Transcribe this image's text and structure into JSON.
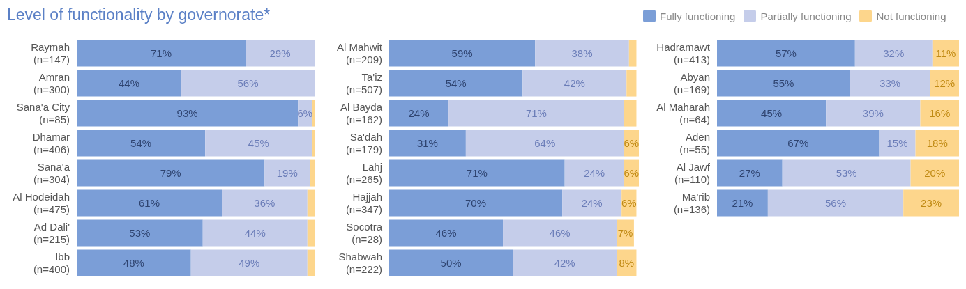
{
  "chart_data": [
    {
      "type": "bar",
      "orientation": "horizontal",
      "stacked": true,
      "title": "Level of functionality by governorate*",
      "legend": false,
      "categories": [
        "Raymah\n(n=147)",
        "Amran\n(n=300)",
        "Sana'a City\n(n=85)",
        "Dhamar\n(n=406)",
        "Sana'a\n(n=304)",
        "Al Hodeidah\n(n=475)",
        "Ad Dali'\n(n=215)",
        "Ibb\n(n=400)"
      ],
      "series": [
        {
          "color": "#7b9ed7",
          "values": [
            71,
            44,
            93,
            54,
            79,
            61,
            53,
            48
          ],
          "value_labels": [
            "71%",
            "44%",
            "93%",
            "54%",
            "79%",
            "61%",
            "53%",
            "48%"
          ]
        },
        {
          "color": "#c5cdea",
          "values": [
            29,
            56,
            6,
            45,
            19,
            36,
            44,
            49
          ],
          "value_labels": [
            "29%",
            "56%",
            "6%",
            "45%",
            "19%",
            "36%",
            "44%",
            "49%"
          ]
        },
        {
          "color": "#fdd68c",
          "values": [
            0,
            0,
            1,
            1,
            2,
            3,
            3,
            3
          ],
          "value_labels": [
            null,
            null,
            null,
            null,
            null,
            null,
            null,
            null
          ]
        }
      ]
    },
    {
      "type": "bar",
      "orientation": "horizontal",
      "stacked": true,
      "legend": "top right",
      "categories": [
        "Al Mahwit\n(n=209)",
        "Ta'iz\n(n=507)",
        "Al Bayda\n(n=162)",
        "Sa'dah\n(n=179)",
        "Lahj\n(n=265)",
        "Hajjah\n(n=347)",
        "Socotra\n(n=28)",
        "Shabwah\n(n=222)"
      ],
      "series": [
        {
          "name": "Fully functioning",
          "color": "#7b9ed7",
          "values": [
            59,
            54,
            24,
            31,
            71,
            70,
            46,
            50
          ],
          "value_labels": [
            "59%",
            "54%",
            "24%",
            "31%",
            "71%",
            "70%",
            "46%",
            "50%"
          ]
        },
        {
          "name": "Partially functioning",
          "color": "#c5cdea",
          "values": [
            38,
            42,
            71,
            64,
            24,
            24,
            46,
            42
          ],
          "value_labels": [
            "38%",
            "42%",
            "71%",
            "64%",
            "24%",
            "24%",
            "46%",
            "42%"
          ]
        },
        {
          "name": "Not functioning",
          "color": "#fdd68c",
          "values": [
            3,
            4,
            5,
            6,
            6,
            6,
            7,
            8
          ],
          "value_labels": [
            null,
            null,
            null,
            "6%",
            "6%",
            "6%",
            "7%",
            "8%"
          ]
        }
      ]
    },
    {
      "type": "bar",
      "orientation": "horizontal",
      "stacked": true,
      "legend": false,
      "categories": [
        "Hadramawt\n(n=413)",
        "Abyan\n(n=169)",
        "Al Maharah\n(n=64)",
        "Aden\n(n=55)",
        "Al Jawf\n(n=110)",
        "Ma'rib\n(n=136)"
      ],
      "series": [
        {
          "color": "#7b9ed7",
          "values": [
            57,
            55,
            45,
            67,
            27,
            21
          ],
          "value_labels": [
            "57%",
            "55%",
            "45%",
            "67%",
            "27%",
            "21%"
          ]
        },
        {
          "color": "#c5cdea",
          "values": [
            32,
            33,
            39,
            15,
            53,
            56
          ],
          "value_labels": [
            "32%",
            "33%",
            "39%",
            "15%",
            "53%",
            "56%"
          ]
        },
        {
          "color": "#fdd68c",
          "values": [
            11,
            12,
            16,
            18,
            20,
            23
          ],
          "value_labels": [
            "11%",
            "12%",
            "16%",
            "18%",
            "20%",
            "23%"
          ]
        }
      ]
    }
  ]
}
